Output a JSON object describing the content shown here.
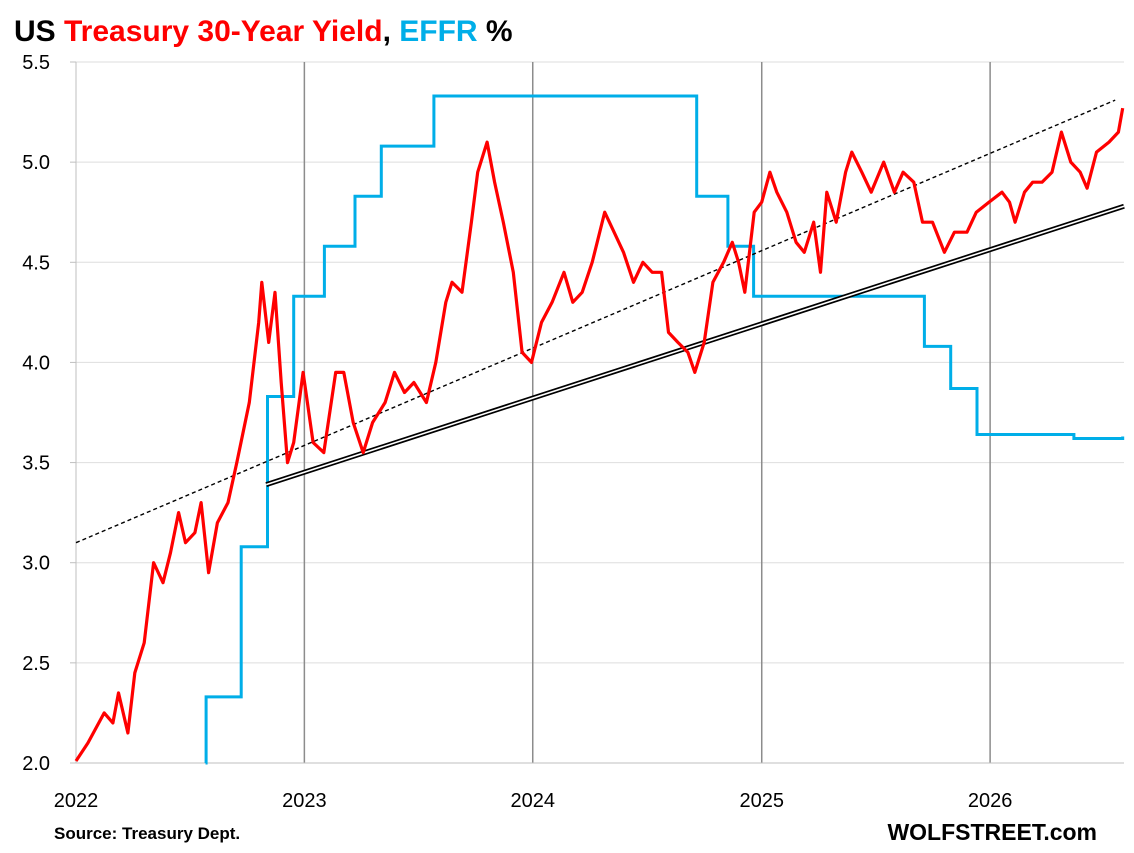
{
  "colors": {
    "treasury": "#ff0000",
    "effr": "#00aee8",
    "black": "#000000",
    "grid": "#dedede",
    "year_line": "#8c8c8c"
  },
  "chart_data": {
    "type": "line",
    "title": {
      "parts": [
        {
          "text": "US ",
          "color": "#000000"
        },
        {
          "text": "Treasury 30-Year Yield",
          "color": "#ff0000"
        },
        {
          "text": ", ",
          "color": "#000000"
        },
        {
          "text": "EFFR",
          "color": "#00aee8"
        },
        {
          "text": " %",
          "color": "#000000"
        }
      ]
    },
    "xlabel": "",
    "ylabel": "",
    "xlim": [
      "2022-01-01",
      "2026-08-03"
    ],
    "ylim": [
      2.0,
      5.5
    ],
    "y_ticks": [
      {
        "value": 2.0,
        "label": "2.0"
      },
      {
        "value": 2.5,
        "label": "2.5"
      },
      {
        "value": 3.0,
        "label": "3.0"
      },
      {
        "value": 3.5,
        "label": "3.5"
      },
      {
        "value": 4.0,
        "label": "4.0"
      },
      {
        "value": 4.5,
        "label": "4.5"
      },
      {
        "value": 5.0,
        "label": "5.0"
      },
      {
        "value": 5.5,
        "label": "5.5"
      }
    ],
    "x_ticks": [
      {
        "value": "2022-01-01",
        "label": "2022"
      },
      {
        "value": "2023-01-01",
        "label": "2023"
      },
      {
        "value": "2024-01-01",
        "label": "2024"
      },
      {
        "value": "2025-01-01",
        "label": "2025"
      },
      {
        "value": "2026-01-01",
        "label": "2026"
      }
    ],
    "grid": true,
    "legend": "none",
    "series": [
      {
        "key": "treasury",
        "style": "line",
        "color": "#ff0000",
        "points": [
          [
            "2022-01-01",
            2.01
          ],
          [
            "2022-01-20",
            2.1
          ],
          [
            "2022-02-15",
            2.25
          ],
          [
            "2022-03-01",
            2.2
          ],
          [
            "2022-03-10",
            2.35
          ],
          [
            "2022-03-25",
            2.15
          ],
          [
            "2022-04-05",
            2.45
          ],
          [
            "2022-04-20",
            2.6
          ],
          [
            "2022-05-05",
            3.0
          ],
          [
            "2022-05-20",
            2.9
          ],
          [
            "2022-06-01",
            3.05
          ],
          [
            "2022-06-14",
            3.25
          ],
          [
            "2022-06-25",
            3.1
          ],
          [
            "2022-07-10",
            3.15
          ],
          [
            "2022-07-20",
            3.3
          ],
          [
            "2022-08-01",
            2.95
          ],
          [
            "2022-08-15",
            3.2
          ],
          [
            "2022-09-01",
            3.3
          ],
          [
            "2022-09-15",
            3.5
          ],
          [
            "2022-10-05",
            3.8
          ],
          [
            "2022-10-20",
            4.2
          ],
          [
            "2022-10-25",
            4.4
          ],
          [
            "2022-11-05",
            4.1
          ],
          [
            "2022-11-15",
            4.35
          ],
          [
            "2022-11-25",
            3.9
          ],
          [
            "2022-12-05",
            3.5
          ],
          [
            "2022-12-15",
            3.6
          ],
          [
            "2022-12-30",
            3.95
          ],
          [
            "2023-01-15",
            3.6
          ],
          [
            "2023-02-01",
            3.55
          ],
          [
            "2023-02-20",
            3.95
          ],
          [
            "2023-03-05",
            3.95
          ],
          [
            "2023-03-20",
            3.7
          ],
          [
            "2023-04-05",
            3.55
          ],
          [
            "2023-04-20",
            3.7
          ],
          [
            "2023-05-10",
            3.8
          ],
          [
            "2023-05-25",
            3.95
          ],
          [
            "2023-06-10",
            3.85
          ],
          [
            "2023-06-25",
            3.9
          ],
          [
            "2023-07-15",
            3.8
          ],
          [
            "2023-07-30",
            4.0
          ],
          [
            "2023-08-15",
            4.3
          ],
          [
            "2023-08-25",
            4.4
          ],
          [
            "2023-09-10",
            4.35
          ],
          [
            "2023-09-25",
            4.7
          ],
          [
            "2023-10-05",
            4.95
          ],
          [
            "2023-10-20",
            5.1
          ],
          [
            "2023-11-01",
            4.9
          ],
          [
            "2023-11-15",
            4.7
          ],
          [
            "2023-12-01",
            4.45
          ],
          [
            "2023-12-15",
            4.05
          ],
          [
            "2023-12-30",
            4.0
          ],
          [
            "2024-01-15",
            4.2
          ],
          [
            "2024-02-01",
            4.3
          ],
          [
            "2024-02-20",
            4.45
          ],
          [
            "2024-03-05",
            4.3
          ],
          [
            "2024-03-20",
            4.35
          ],
          [
            "2024-04-05",
            4.5
          ],
          [
            "2024-04-25",
            4.75
          ],
          [
            "2024-05-10",
            4.65
          ],
          [
            "2024-05-25",
            4.55
          ],
          [
            "2024-06-10",
            4.4
          ],
          [
            "2024-06-25",
            4.5
          ],
          [
            "2024-07-10",
            4.45
          ],
          [
            "2024-07-25",
            4.45
          ],
          [
            "2024-08-05",
            4.15
          ],
          [
            "2024-08-20",
            4.1
          ],
          [
            "2024-09-05",
            4.05
          ],
          [
            "2024-09-16",
            3.95
          ],
          [
            "2024-10-01",
            4.1
          ],
          [
            "2024-10-15",
            4.4
          ],
          [
            "2024-11-01",
            4.5
          ],
          [
            "2024-11-15",
            4.6
          ],
          [
            "2024-11-25",
            4.5
          ],
          [
            "2024-12-05",
            4.35
          ],
          [
            "2024-12-20",
            4.75
          ],
          [
            "2025-01-01",
            4.8
          ],
          [
            "2025-01-14",
            4.95
          ],
          [
            "2025-01-25",
            4.85
          ],
          [
            "2025-02-10",
            4.75
          ],
          [
            "2025-02-25",
            4.6
          ],
          [
            "2025-03-10",
            4.55
          ],
          [
            "2025-03-25",
            4.7
          ],
          [
            "2025-04-05",
            4.45
          ],
          [
            "2025-04-15",
            4.85
          ],
          [
            "2025-04-30",
            4.7
          ],
          [
            "2025-05-15",
            4.95
          ],
          [
            "2025-05-25",
            5.05
          ],
          [
            "2025-06-10",
            4.95
          ],
          [
            "2025-06-25",
            4.85
          ],
          [
            "2025-07-15",
            5.0
          ],
          [
            "2025-08-01",
            4.85
          ],
          [
            "2025-08-15",
            4.95
          ],
          [
            "2025-09-01",
            4.9
          ],
          [
            "2025-09-15",
            4.7
          ],
          [
            "2025-10-01",
            4.7
          ],
          [
            "2025-10-20",
            4.55
          ],
          [
            "2025-11-05",
            4.65
          ],
          [
            "2025-11-25",
            4.65
          ],
          [
            "2025-12-10",
            4.75
          ],
          [
            "2025-12-30",
            4.8
          ],
          [
            "2026-01-20",
            4.85
          ],
          [
            "2026-02-01",
            4.8
          ],
          [
            "2026-02-10",
            4.7
          ],
          [
            "2026-02-25",
            4.85
          ],
          [
            "2026-03-10",
            4.9
          ],
          [
            "2026-03-25",
            4.9
          ],
          [
            "2026-04-10",
            4.95
          ],
          [
            "2026-04-25",
            5.15
          ],
          [
            "2026-05-10",
            5.0
          ],
          [
            "2026-05-25",
            4.95
          ],
          [
            "2026-06-05",
            4.87
          ],
          [
            "2026-06-20",
            5.05
          ],
          [
            "2026-07-10",
            5.1
          ],
          [
            "2026-07-25",
            5.15
          ],
          [
            "2026-08-01",
            5.27
          ]
        ]
      },
      {
        "key": "effr",
        "style": "step",
        "color": "#00aee8",
        "points": [
          [
            "2022-07-27",
            2.0
          ],
          [
            "2022-07-28",
            2.33
          ],
          [
            "2022-09-22",
            3.08
          ],
          [
            "2022-11-03",
            3.83
          ],
          [
            "2022-12-15",
            4.33
          ],
          [
            "2023-02-02",
            4.58
          ],
          [
            "2023-03-23",
            4.83
          ],
          [
            "2023-05-04",
            5.08
          ],
          [
            "2023-07-27",
            5.33
          ],
          [
            "2024-09-19",
            4.83
          ],
          [
            "2024-11-08",
            4.58
          ],
          [
            "2024-12-19",
            4.33
          ],
          [
            "2025-09-18",
            4.08
          ],
          [
            "2025-10-30",
            3.87
          ],
          [
            "2025-12-11",
            3.64
          ],
          [
            "2026-03-01",
            3.64
          ],
          [
            "2026-05-15",
            3.62
          ],
          [
            "2026-08-01",
            3.63
          ]
        ]
      },
      {
        "key": "trend_dashed",
        "style": "dashed",
        "color": "#000000",
        "points": [
          [
            "2022-01-01",
            3.1
          ],
          [
            "2026-07-20",
            5.31
          ]
        ]
      },
      {
        "key": "trend_double",
        "style": "double",
        "color": "#000000",
        "points": [
          [
            "2022-11-01",
            3.39
          ],
          [
            "2026-08-03",
            4.78
          ]
        ]
      }
    ],
    "source": "Source: Treasury Dept.",
    "watermark": "WOLFSTREET.com"
  }
}
